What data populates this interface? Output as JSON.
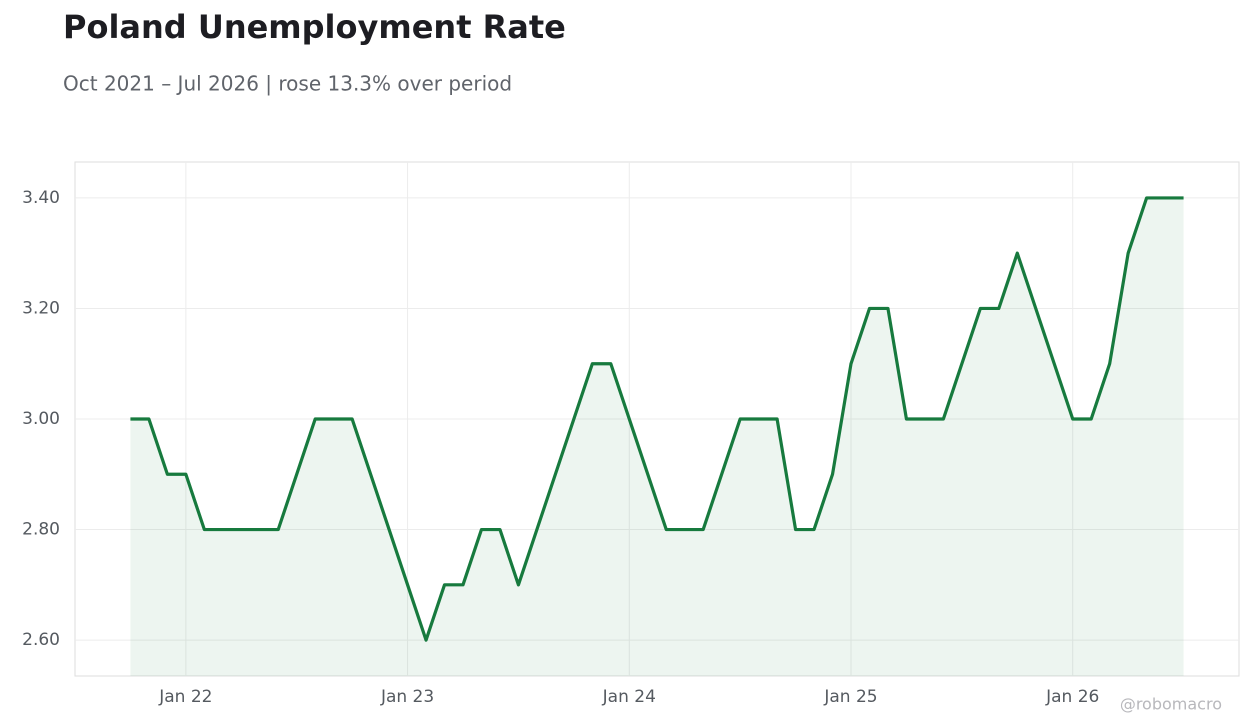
{
  "chart_data": {
    "type": "line",
    "title": "Poland Unemployment Rate",
    "subtitle": "Oct 2021 – Jul 2026 | rose 13.3% over period",
    "watermark": "@robomacro",
    "color": "#177a3e",
    "fill": true,
    "grid": true,
    "x": [
      "2021-10",
      "2021-11",
      "2021-12",
      "2022-01",
      "2022-02",
      "2022-03",
      "2022-04",
      "2022-05",
      "2022-06",
      "2022-07",
      "2022-08",
      "2022-09",
      "2022-10",
      "2022-11",
      "2022-12",
      "2023-01",
      "2023-02",
      "2023-03",
      "2023-04",
      "2023-05",
      "2023-06",
      "2023-07",
      "2023-08",
      "2023-09",
      "2023-10",
      "2023-11",
      "2023-12",
      "2024-01",
      "2024-02",
      "2024-03",
      "2024-04",
      "2024-05",
      "2024-06",
      "2024-07",
      "2024-08",
      "2024-09",
      "2024-10",
      "2024-11",
      "2024-12",
      "2025-01",
      "2025-02",
      "2025-03",
      "2025-04",
      "2025-05",
      "2025-06",
      "2025-07",
      "2025-08",
      "2025-09",
      "2025-10",
      "2025-11",
      "2025-12",
      "2026-01",
      "2026-02",
      "2026-03",
      "2026-04",
      "2026-05",
      "2026-06",
      "2026-07"
    ],
    "values": [
      3.0,
      3.0,
      2.9,
      2.9,
      2.8,
      2.8,
      2.8,
      2.8,
      2.8,
      2.9,
      3.0,
      3.0,
      3.0,
      2.9,
      2.8,
      2.7,
      2.6,
      2.7,
      2.7,
      2.8,
      2.8,
      2.7,
      2.8,
      2.9,
      3.0,
      3.1,
      3.1,
      3.0,
      2.9,
      2.8,
      2.8,
      2.8,
      2.9,
      3.0,
      3.0,
      3.0,
      2.8,
      2.8,
      2.9,
      3.1,
      3.2,
      3.2,
      3.0,
      3.0,
      3.0,
      3.1,
      3.2,
      3.2,
      3.3,
      3.2,
      3.1,
      3.0,
      3.0,
      3.1,
      3.3,
      3.4,
      3.4,
      3.4
    ],
    "xlim": [
      "2021-07",
      "2026-10"
    ],
    "xticks": [
      {
        "value": "2022-01",
        "label": "Jan 22"
      },
      {
        "value": "2023-01",
        "label": "Jan 23"
      },
      {
        "value": "2024-01",
        "label": "Jan 24"
      },
      {
        "value": "2025-01",
        "label": "Jan 25"
      },
      {
        "value": "2026-01",
        "label": "Jan 26"
      }
    ],
    "ylim": [
      2.535,
      3.465
    ],
    "yticks": [
      {
        "value": 2.6,
        "label": "2.60"
      },
      {
        "value": 2.8,
        "label": "2.80"
      },
      {
        "value": 3.0,
        "label": "3.00"
      },
      {
        "value": 3.2,
        "label": "3.20"
      },
      {
        "value": 3.4,
        "label": "3.40"
      }
    ]
  }
}
